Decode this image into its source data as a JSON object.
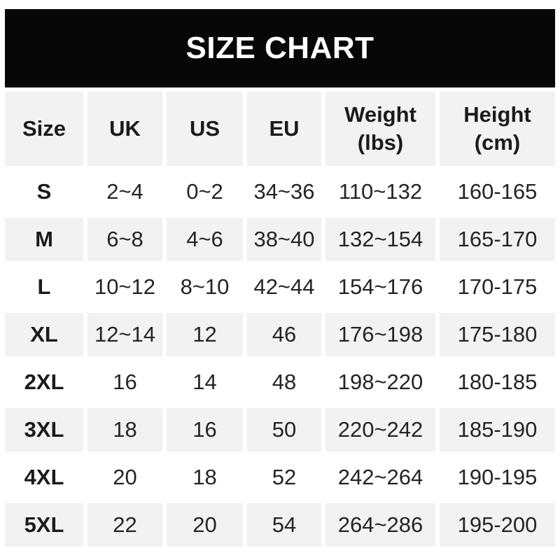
{
  "banner": {
    "title": "SIZE CHART"
  },
  "chart_data": {
    "type": "table",
    "title": "SIZE CHART",
    "columns": [
      {
        "key": "size",
        "label": "Size",
        "sub": ""
      },
      {
        "key": "uk",
        "label": "UK",
        "sub": ""
      },
      {
        "key": "us",
        "label": "US",
        "sub": ""
      },
      {
        "key": "eu",
        "label": "EU",
        "sub": ""
      },
      {
        "key": "weight",
        "label": "Weight",
        "sub": "(lbs)"
      },
      {
        "key": "height",
        "label": "Height",
        "sub": "(cm)"
      }
    ],
    "rows": [
      [
        "S",
        "2~4",
        "0~2",
        "34~36",
        "110~132",
        "160-165"
      ],
      [
        "M",
        "6~8",
        "4~6",
        "38~40",
        "132~154",
        "165-170"
      ],
      [
        "L",
        "10~12",
        "8~10",
        "42~44",
        "154~176",
        "170-175"
      ],
      [
        "XL",
        "12~14",
        "12",
        "46",
        "176~198",
        "175-180"
      ],
      [
        "2XL",
        "16",
        "14",
        "48",
        "198~220",
        "180-185"
      ],
      [
        "3XL",
        "18",
        "16",
        "50",
        "220~242",
        "185-190"
      ],
      [
        "4XL",
        "20",
        "18",
        "52",
        "242~264",
        "190-195"
      ],
      [
        "5XL",
        "22",
        "20",
        "54",
        "264~286",
        "195-200"
      ]
    ],
    "layout": {
      "alternating_row_shading": "odd rows white, even rows gray",
      "grid": "off",
      "legend": "none"
    }
  },
  "colors": {
    "banner_bg": "#070707",
    "banner_text": "#ffffff",
    "cell_alt_bg": "#f2f2f2",
    "cell_bg": "#ffffff",
    "text": "#242424",
    "bold_text": "#1b1b1b"
  }
}
